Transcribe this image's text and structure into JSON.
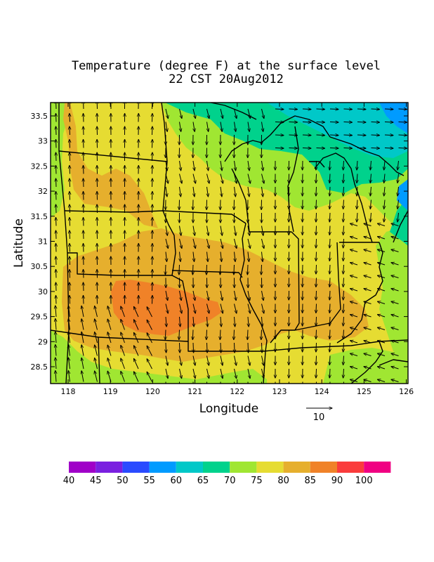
{
  "title_line1": "Temperature (degree F) at the surface level",
  "title_line2": "22 CST 20Aug2012",
  "xlabel": "Longitude",
  "ylabel": "Latitude",
  "x_ticks": [
    "118",
    "119",
    "120",
    "121",
    "122",
    "123",
    "124",
    "125",
    "126"
  ],
  "y_ticks": [
    "33.5",
    "33",
    "32.5",
    "32",
    "31.5",
    "31",
    "30.5",
    "30",
    "29.5",
    "29",
    "28.5"
  ],
  "vector_ref_label": "10",
  "colorbar": {
    "labels": [
      "40",
      "45",
      "50",
      "55",
      "60",
      "65",
      "70",
      "75",
      "80",
      "85",
      "90",
      "100"
    ],
    "colors": [
      "#a000c8",
      "#7a20e0",
      "#2a4bff",
      "#009bff",
      "#00c8c8",
      "#00d28c",
      "#a0e632",
      "#e6dc32",
      "#e6af2d",
      "#f08228",
      "#fa3c3c",
      "#f00082"
    ]
  },
  "chart_data": {
    "type": "heatmap",
    "title": "Temperature (degree F) at the surface level",
    "subtitle": "22 CST 20Aug2012",
    "xlabel": "Longitude",
    "ylabel": "Latitude",
    "xlim": [
      117.6,
      126.1
    ],
    "ylim": [
      28.2,
      33.8
    ],
    "value_bins": [
      40,
      45,
      50,
      55,
      60,
      65,
      70,
      75,
      80,
      85,
      90,
      100
    ]
  }
}
